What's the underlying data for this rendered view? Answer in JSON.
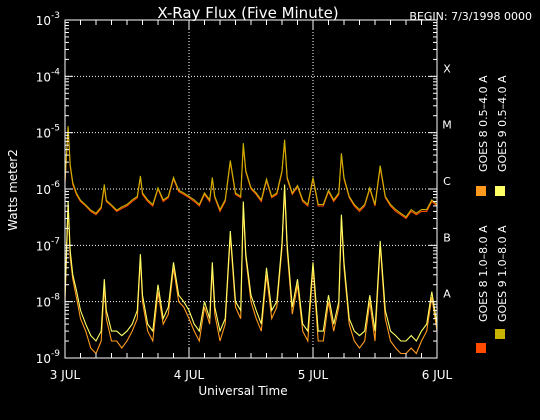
{
  "chart_data": {
    "type": "line",
    "title": "X-Ray Flux (Five Minute)",
    "begin": "BEGIN: 7/3/1998 0000",
    "xlabel": "Universal Time",
    "ylabel": "Watts meter2",
    "yscale": "log",
    "ylim": [
      1e-09,
      0.001
    ],
    "xlim": [
      0,
      72
    ],
    "x_unit": "hours since 1998-07-03 00:00 UT",
    "x_ticks": [
      {
        "x": 0,
        "label": "3 JUL"
      },
      {
        "x": 24,
        "label": "4 JUL"
      },
      {
        "x": 48,
        "label": "5 JUL"
      },
      {
        "x": 72,
        "label": "6 JUL"
      }
    ],
    "y_ticks": [
      {
        "value": 1e-09,
        "base": "10",
        "exp": "-9"
      },
      {
        "value": 1e-08,
        "base": "10",
        "exp": "-8"
      },
      {
        "value": 1e-07,
        "base": "10",
        "exp": "-7"
      },
      {
        "value": 1e-06,
        "base": "10",
        "exp": "-6"
      },
      {
        "value": 1e-05,
        "base": "10",
        "exp": "-5"
      },
      {
        "value": 0.0001,
        "base": "10",
        "exp": "-4"
      },
      {
        "value": 0.001,
        "base": "10",
        "exp": "-3"
      }
    ],
    "flare_classes": [
      {
        "label": "A",
        "value": 1e-08
      },
      {
        "label": "B",
        "value": 1e-07
      },
      {
        "label": "C",
        "value": 1e-06
      },
      {
        "label": "M",
        "value": 1e-05
      },
      {
        "label": "X",
        "value": 0.0001
      }
    ],
    "grid": true,
    "legend_position": "right",
    "series": [
      {
        "name": "GOES 8 1.0–8.0 A",
        "color": "#ff4a00",
        "x": [
          0,
          0.6,
          1.0,
          1.5,
          2.2,
          3,
          4,
          5,
          6,
          7,
          7.6,
          8,
          9,
          10,
          11,
          12,
          13,
          14,
          14.6,
          15,
          16,
          17,
          18,
          19,
          20,
          21,
          22,
          23,
          24,
          25,
          26,
          27,
          28,
          28.5,
          29,
          30,
          31,
          32,
          33,
          34,
          34.5,
          35,
          36,
          37,
          38,
          39,
          40,
          41,
          42,
          42.5,
          43,
          44,
          45,
          46,
          47,
          48,
          49,
          50,
          51,
          52,
          53,
          53.5,
          54,
          55,
          56,
          57,
          58,
          59,
          60,
          61,
          62,
          63,
          64,
          65,
          66,
          67,
          68,
          69,
          70,
          71,
          72
        ],
        "y": [
          1.3e-06,
          1.2e-05,
          2.5e-06,
          1.2e-06,
          8e-07,
          6e-07,
          5e-07,
          4e-07,
          3.5e-07,
          4.5e-07,
          1.1e-06,
          6e-07,
          5e-07,
          4e-07,
          4.5e-07,
          5e-07,
          6e-07,
          7e-07,
          1.6e-06,
          8e-07,
          6e-07,
          5e-07,
          1e-06,
          6e-07,
          7e-07,
          1.5e-06,
          9e-07,
          8e-07,
          7e-07,
          6e-07,
          5e-07,
          8e-07,
          6e-07,
          1.5e-06,
          7e-07,
          4e-07,
          6e-07,
          3e-06,
          8e-07,
          7e-07,
          6e-06,
          2e-06,
          1e-06,
          8e-07,
          6e-07,
          1.4e-06,
          7e-07,
          8e-07,
          2e-06,
          7e-06,
          1.5e-06,
          8e-07,
          1.1e-06,
          6e-07,
          5e-07,
          1.5e-06,
          5e-07,
          5e-07,
          9e-07,
          6e-07,
          8e-07,
          4e-06,
          1.5e-06,
          7e-07,
          5e-07,
          4e-07,
          5e-07,
          1e-06,
          5e-07,
          2.4e-06,
          7e-07,
          5e-07,
          4e-07,
          3.5e-07,
          3e-07,
          4e-07,
          3.5e-07,
          4e-07,
          4e-07,
          6e-07,
          5e-07
        ]
      },
      {
        "name": "GOES 8 0.5–4.0 A",
        "color": "#ff9a1e",
        "x": [
          0,
          0.6,
          1.0,
          1.5,
          2.2,
          3,
          4,
          5,
          6,
          7,
          7.6,
          8,
          9,
          10,
          11,
          12,
          13,
          14,
          14.6,
          15,
          16,
          17,
          18,
          19,
          20,
          21,
          22,
          23,
          24,
          25,
          26,
          27,
          28,
          28.5,
          29,
          30,
          31,
          32,
          33,
          34,
          34.5,
          35,
          36,
          37,
          38,
          39,
          40,
          41,
          42,
          42.5,
          43,
          44,
          45,
          46,
          47,
          48,
          49,
          50,
          51,
          52,
          53,
          53.5,
          54,
          55,
          56,
          57,
          58,
          59,
          60,
          61,
          62,
          63,
          64,
          65,
          66,
          67,
          68,
          69,
          70,
          71,
          72
        ],
        "y": [
          1e-08,
          5e-07,
          6e-08,
          2.5e-08,
          1.2e-08,
          5e-09,
          3e-09,
          1.5e-09,
          1.2e-09,
          2e-09,
          2e-08,
          5e-09,
          2e-09,
          2e-09,
          1.5e-09,
          2e-09,
          3e-09,
          5e-09,
          6e-08,
          1e-08,
          3e-09,
          2e-09,
          1.5e-08,
          4e-09,
          6e-09,
          4e-08,
          1e-08,
          8e-09,
          5e-09,
          3e-09,
          2e-09,
          8e-09,
          4e-09,
          4e-08,
          6e-09,
          2e-09,
          4e-09,
          1.5e-07,
          8e-09,
          5e-09,
          5e-07,
          6e-08,
          1e-08,
          5e-09,
          3e-09,
          3e-08,
          5e-09,
          8e-09,
          9e-08,
          1e-06,
          8e-08,
          6e-09,
          2e-08,
          3e-09,
          2e-09,
          4e-08,
          2e-09,
          2e-09,
          1e-08,
          3e-09,
          8e-09,
          3e-07,
          4e-08,
          4e-09,
          2e-09,
          1.5e-09,
          2e-09,
          1e-08,
          2e-09,
          1e-07,
          5e-09,
          2e-09,
          1.5e-09,
          1.2e-09,
          1.2e-09,
          1.5e-09,
          1.2e-09,
          2e-09,
          3e-09,
          1.2e-08,
          3e-09
        ]
      },
      {
        "name": "GOES 9 1.0–8.0 A",
        "color": "#c8b400",
        "x": [
          0,
          0.6,
          1.0,
          1.5,
          2.2,
          3,
          4,
          5,
          6,
          7,
          7.6,
          8,
          9,
          10,
          11,
          12,
          13,
          14,
          14.6,
          15,
          16,
          17,
          18,
          19,
          20,
          21,
          22,
          23,
          24,
          25,
          26,
          27,
          28,
          28.5,
          29,
          30,
          31,
          32,
          33,
          34,
          34.5,
          35,
          36,
          37,
          38,
          39,
          40,
          41,
          42,
          42.5,
          43,
          44,
          45,
          46,
          47,
          48,
          49,
          50,
          51,
          52,
          53,
          53.5,
          54,
          55,
          56,
          57,
          58,
          59,
          60,
          61,
          62,
          63,
          64,
          65,
          66,
          67,
          68,
          69,
          70,
          71,
          72
        ],
        "y": [
          1.4e-06,
          1.3e-05,
          2.7e-06,
          1.3e-06,
          8.5e-07,
          6.3e-07,
          5.2e-07,
          4.2e-07,
          3.7e-07,
          4.8e-07,
          1.2e-06,
          6.3e-07,
          5.2e-07,
          4.2e-07,
          4.8e-07,
          5.3e-07,
          6.4e-07,
          7.4e-07,
          1.7e-06,
          8.5e-07,
          6.4e-07,
          5.3e-07,
          1.05e-06,
          6.4e-07,
          7.4e-07,
          1.6e-06,
          9.5e-07,
          8.5e-07,
          7.4e-07,
          6.4e-07,
          5.3e-07,
          8.5e-07,
          6.4e-07,
          1.6e-06,
          7.4e-07,
          4.3e-07,
          6.4e-07,
          3.2e-06,
          8.5e-07,
          7.4e-07,
          6.5e-06,
          2.1e-06,
          1.05e-06,
          8.5e-07,
          6.4e-07,
          1.5e-06,
          7.4e-07,
          8.5e-07,
          2.1e-06,
          7.5e-06,
          1.6e-06,
          8.5e-07,
          1.15e-06,
          6.4e-07,
          5.3e-07,
          1.6e-06,
          5.3e-07,
          5.3e-07,
          9.5e-07,
          6.4e-07,
          8.5e-07,
          4.3e-06,
          1.6e-06,
          7.4e-07,
          5.3e-07,
          4.3e-07,
          5.3e-07,
          1.05e-06,
          5.3e-07,
          2.6e-06,
          7.4e-07,
          5.3e-07,
          4.3e-07,
          3.7e-07,
          3.2e-07,
          4.3e-07,
          3.7e-07,
          4.3e-07,
          4.3e-07,
          6.4e-07,
          5.3e-07
        ]
      },
      {
        "name": "GOES 9 0.5–4.0 A",
        "color": "#ffff66",
        "x": [
          0,
          0.6,
          1.0,
          1.5,
          2.2,
          3,
          4,
          5,
          6,
          7,
          7.6,
          8,
          9,
          10,
          11,
          12,
          13,
          14,
          14.6,
          15,
          16,
          17,
          18,
          19,
          20,
          21,
          22,
          23,
          24,
          25,
          26,
          27,
          28,
          28.5,
          29,
          30,
          31,
          32,
          33,
          34,
          34.5,
          35,
          36,
          37,
          38,
          39,
          40,
          41,
          42,
          42.5,
          43,
          44,
          45,
          46,
          47,
          48,
          49,
          50,
          51,
          52,
          53,
          53.5,
          54,
          55,
          56,
          57,
          58,
          59,
          60,
          61,
          62,
          63,
          64,
          65,
          66,
          67,
          68,
          69,
          70,
          71,
          72
        ],
        "y": [
          1.3e-08,
          6e-07,
          8e-08,
          3e-08,
          1.6e-08,
          7e-09,
          4e-09,
          2.5e-09,
          2e-09,
          3e-09,
          2.5e-08,
          7e-09,
          3e-09,
          3e-09,
          2.5e-09,
          3e-09,
          4e-09,
          7e-09,
          7e-08,
          1.3e-08,
          4e-09,
          3e-09,
          2e-08,
          5e-09,
          8e-09,
          5e-08,
          1.3e-08,
          1e-08,
          7e-09,
          4e-09,
          3e-09,
          1e-08,
          5e-09,
          5e-08,
          8e-09,
          3e-09,
          5e-09,
          1.8e-07,
          1e-08,
          7e-09,
          6e-07,
          7e-08,
          1.3e-08,
          7e-09,
          4e-09,
          4e-08,
          7e-09,
          1e-08,
          1.1e-07,
          1.2e-06,
          1e-07,
          8e-09,
          2.5e-08,
          4e-09,
          3e-09,
          5e-08,
          3e-09,
          3e-09,
          1.3e-08,
          4e-09,
          1e-08,
          3.5e-07,
          5e-08,
          5e-09,
          3e-09,
          2.5e-09,
          3e-09,
          1.3e-08,
          3e-09,
          1.2e-07,
          7e-09,
          3e-09,
          2.5e-09,
          2e-09,
          2e-09,
          2.5e-09,
          2e-09,
          3e-09,
          4e-09,
          1.5e-08,
          4e-09
        ]
      }
    ]
  }
}
